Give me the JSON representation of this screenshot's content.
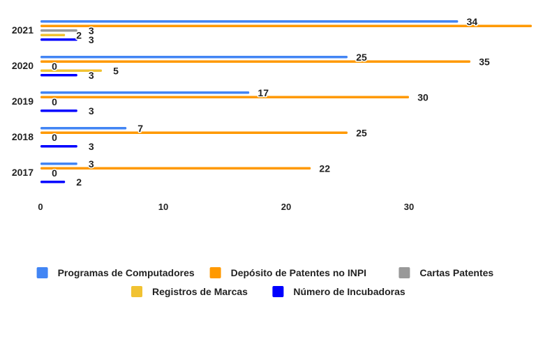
{
  "chart_data": {
    "type": "bar",
    "orientation": "horizontal",
    "categories": [
      "2021",
      "2020",
      "2019",
      "2018",
      "2017"
    ],
    "series": [
      {
        "name": "Programas de Computadores",
        "color": "#4285f4",
        "values": [
          34,
          25,
          17,
          7,
          3
        ]
      },
      {
        "name": "Depósito de Patentes no INPI",
        "color": "#ff9900",
        "values": [
          40,
          35,
          30,
          25,
          22
        ]
      },
      {
        "name": "Cartas Patentes",
        "color": "#999999",
        "values": [
          3,
          0,
          0,
          0,
          0
        ]
      },
      {
        "name": "Registros de Marcas",
        "color": "#f1c232",
        "values": [
          2,
          5,
          0,
          0,
          0
        ]
      },
      {
        "name": "Número de Incubadoras",
        "color": "#0000ff",
        "values": [
          3,
          3,
          3,
          3,
          2
        ]
      }
    ],
    "data_labels": [
      [
        "34",
        "",
        "3",
        "2",
        "3"
      ],
      [
        "25",
        "35",
        "0",
        "5",
        "3"
      ],
      [
        "17",
        "30",
        "0",
        "",
        "3"
      ],
      [
        "7",
        "25",
        "0",
        "",
        "3"
      ],
      [
        "3",
        "22",
        "0",
        "",
        "2"
      ]
    ],
    "x_ticks": [
      0,
      10,
      20,
      30
    ],
    "xlim": [
      0,
      40
    ],
    "grid": false,
    "legend_position": "bottom"
  }
}
